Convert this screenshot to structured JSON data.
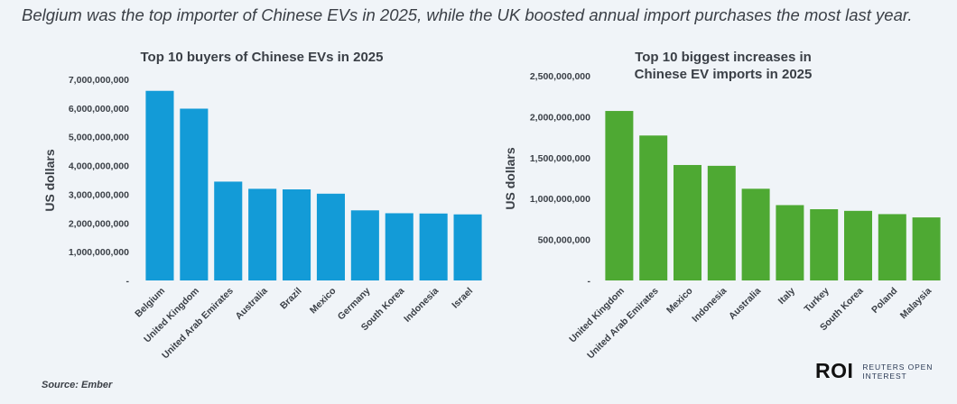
{
  "headline": "Belgium was the top importer of Chinese EVs in 2025, while the UK boosted annual import purchases the most last year.",
  "source": "Source: Ember",
  "logo": {
    "mark": "ROI",
    "text": "REUTERS OPEN INTEREST"
  },
  "colors": {
    "blue": "#139bd7",
    "green": "#4ea933",
    "text": "#3a3f46"
  },
  "chart_data": [
    {
      "type": "bar",
      "title": "Top 10 buyers of Chinese EVs in 2025",
      "ylabel": "US dollars",
      "xlabel": "",
      "ylim": [
        0,
        7000000000
      ],
      "yticks": [
        0,
        1000000000,
        2000000000,
        3000000000,
        4000000000,
        5000000000,
        6000000000,
        7000000000
      ],
      "ytick_labels": [
        "-",
        "1,000,000,000",
        "2,000,000,000",
        "3,000,000,000",
        "4,000,000,000",
        "5,000,000,000",
        "6,000,000,000",
        "7,000,000,000"
      ],
      "categories": [
        "Belgium",
        "United Kingdom",
        "United Arab Emirates",
        "Australia",
        "Brazil",
        "Mexico",
        "Germany",
        "South Korea",
        "Indonesia",
        "Israel"
      ],
      "values": [
        6600000000,
        5980000000,
        3440000000,
        3190000000,
        3170000000,
        3020000000,
        2440000000,
        2340000000,
        2330000000,
        2300000000
      ],
      "color": "#139bd7",
      "grid": false
    },
    {
      "type": "bar",
      "title": "Top 10 biggest increases in Chinese EV imports in 2025",
      "ylabel": "US dollars",
      "xlabel": "",
      "ylim": [
        0,
        2500000000
      ],
      "yticks": [
        0,
        500000000,
        1000000000,
        1500000000,
        2000000000,
        2500000000
      ],
      "ytick_labels": [
        "-",
        "500,000,000",
        "1,000,000,000",
        "1,500,000,000",
        "2,000,000,000",
        "2,500,000,000"
      ],
      "categories": [
        "United Kingdom",
        "United Arab Emirates",
        "Mexico",
        "Indonesia",
        "Australia",
        "Italy",
        "Turkey",
        "South Korea",
        "Poland",
        "Malaysia"
      ],
      "values": [
        2070000000,
        1770000000,
        1410000000,
        1400000000,
        1120000000,
        920000000,
        870000000,
        850000000,
        810000000,
        770000000
      ],
      "color": "#4ea933",
      "grid": false
    }
  ]
}
